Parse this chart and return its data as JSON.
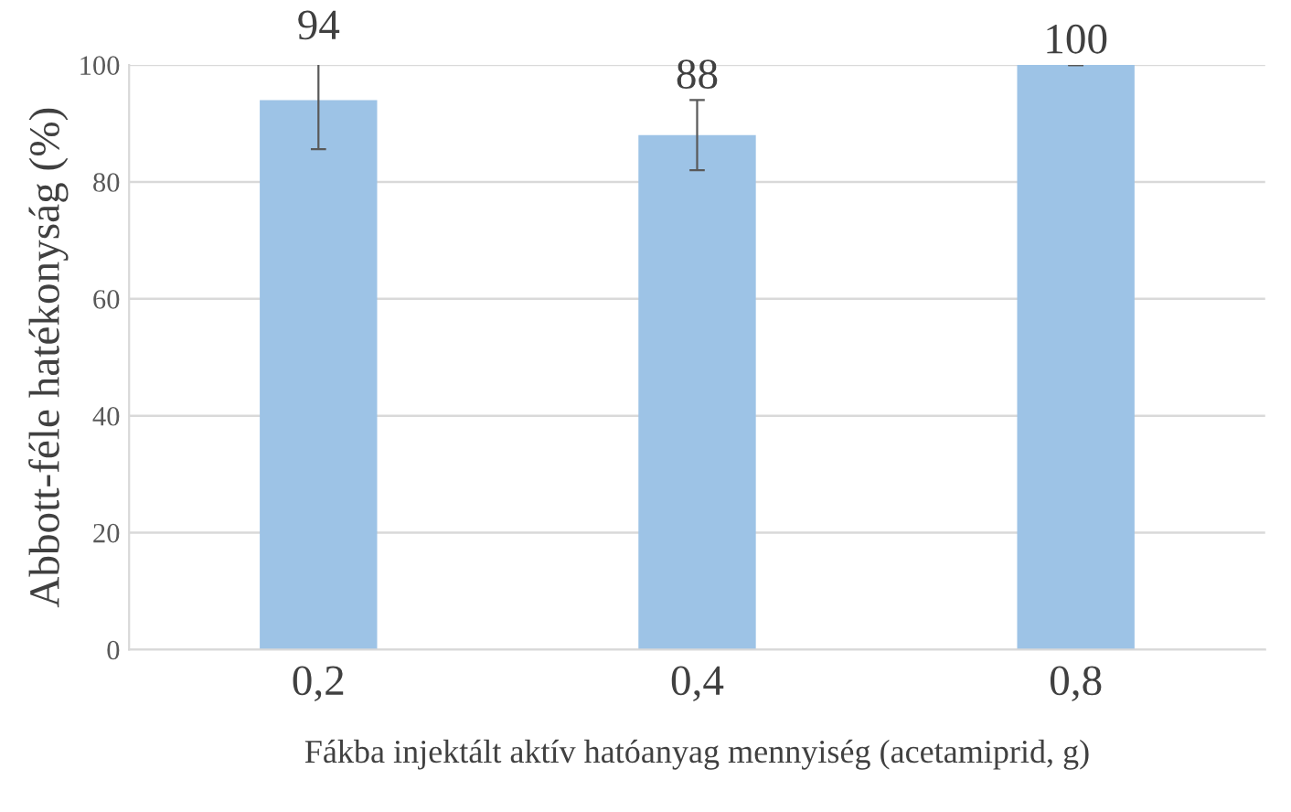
{
  "chart_data": {
    "type": "bar",
    "xlabel": "Fákba injektált aktív hatóanyag mennyiség (acetamiprid, g)",
    "ylabel": "Abbott-féle hatékonyság (%)",
    "categories": [
      "0,2",
      "0,4",
      "0,8"
    ],
    "values": [
      94,
      88,
      100
    ],
    "errors": [
      8.4,
      6,
      0
    ],
    "color": "#9dc3e6",
    "data_labels": true,
    "ylim": [
      0,
      100
    ],
    "yticks": [
      0,
      20,
      40,
      60,
      80,
      100
    ],
    "grid": "y",
    "legend": false
  }
}
